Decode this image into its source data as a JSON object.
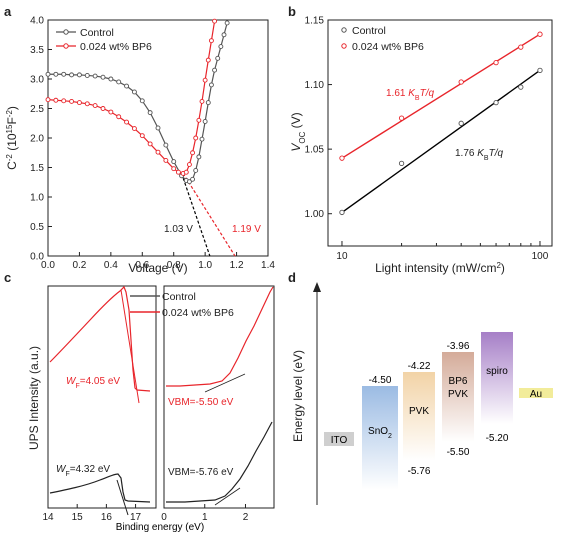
{
  "panels": {
    "a": "a",
    "b": "b",
    "c": "c",
    "d": "d"
  },
  "colors": {
    "control": "#555555",
    "bp6": "#e8252b",
    "control_fit": "#000000",
    "bp6_fit": "#e8252b"
  },
  "legend": {
    "control": "Control",
    "bp6": "0.024 wt% BP6"
  },
  "chart_data": [
    {
      "id": "a",
      "type": "line",
      "xlabel": "Voltage (V)",
      "ylabel_main": "C",
      "ylabel_sup": "-2",
      "ylabel_rest": " (10",
      "ylabel_sup2": "15",
      "ylabel_unit": "F",
      "ylabel_sup3": "-2",
      "ylabel_close": ")",
      "xlim": [
        0.0,
        1.4
      ],
      "ylim": [
        0.0,
        4.0
      ],
      "xticks": [
        "0.0",
        "0.2",
        "0.4",
        "0.6",
        "0.8",
        "1.0",
        "1.2",
        "1.4"
      ],
      "yticks": [
        "0.0",
        "0.5",
        "1.0",
        "1.5",
        "2.0",
        "2.5",
        "3.0",
        "3.5",
        "4.0"
      ],
      "series": [
        {
          "name": "Control",
          "x": [
            0.0,
            0.05,
            0.1,
            0.15,
            0.2,
            0.25,
            0.3,
            0.35,
            0.4,
            0.45,
            0.5,
            0.55,
            0.6,
            0.65,
            0.7,
            0.75,
            0.8,
            0.85,
            0.88,
            0.9,
            0.92,
            0.94,
            0.96,
            0.98,
            1.0,
            1.02,
            1.04,
            1.06,
            1.08,
            1.1,
            1.12,
            1.14
          ],
          "y": [
            3.08,
            3.08,
            3.08,
            3.07,
            3.07,
            3.06,
            3.05,
            3.03,
            3.0,
            2.95,
            2.88,
            2.78,
            2.63,
            2.43,
            2.17,
            1.88,
            1.6,
            1.36,
            1.28,
            1.26,
            1.3,
            1.45,
            1.68,
            1.98,
            2.28,
            2.6,
            2.9,
            3.15,
            3.35,
            3.55,
            3.75,
            3.95
          ]
        },
        {
          "name": "0.024 wt% BP6",
          "x": [
            0.0,
            0.05,
            0.1,
            0.15,
            0.2,
            0.25,
            0.3,
            0.35,
            0.4,
            0.45,
            0.5,
            0.55,
            0.6,
            0.65,
            0.7,
            0.75,
            0.8,
            0.83,
            0.86,
            0.88,
            0.9,
            0.92,
            0.94,
            0.96,
            0.98,
            1.0,
            1.02,
            1.04,
            1.06
          ],
          "y": [
            2.65,
            2.64,
            2.63,
            2.62,
            2.6,
            2.58,
            2.55,
            2.5,
            2.44,
            2.36,
            2.27,
            2.16,
            2.04,
            1.9,
            1.76,
            1.62,
            1.48,
            1.42,
            1.4,
            1.42,
            1.55,
            1.75,
            2.0,
            2.3,
            2.62,
            2.98,
            3.32,
            3.65,
            3.98
          ]
        }
      ],
      "fits": [
        {
          "name": "Control fit",
          "x": [
            0.85,
            1.03
          ],
          "y": [
            1.4,
            0.0
          ]
        },
        {
          "name": "BP6 fit",
          "x": [
            0.86,
            1.19
          ],
          "y": [
            1.4,
            0.0
          ]
        }
      ],
      "annotations": {
        "control_vbi": "1.03 V",
        "bp6_vbi": "1.19 V"
      }
    },
    {
      "id": "b",
      "type": "scatter",
      "xlabel": "Light intensity (mW/cm",
      "xlabel_sup": "2",
      "xlabel_close": ")",
      "ylabel_main": "V",
      "ylabel_sub": "OC",
      "ylabel_unit": " (V)",
      "xscale": "log",
      "xlim": [
        8.5,
        115
      ],
      "ylim": [
        0.975,
        1.15
      ],
      "xticks": [
        "10",
        "100"
      ],
      "xtick_values": [
        10,
        100
      ],
      "yticks": [
        "1.00",
        "1.05",
        "1.10",
        "1.15"
      ],
      "ytick_values": [
        1.0,
        1.05,
        1.1,
        1.15
      ],
      "series": [
        {
          "name": "Control",
          "x": [
            10,
            20,
            40,
            60,
            80,
            100
          ],
          "y": [
            1.001,
            1.039,
            1.07,
            1.086,
            1.098,
            1.111
          ]
        },
        {
          "name": "0.024 wt% BP6",
          "x": [
            10,
            20,
            40,
            60,
            80,
            100
          ],
          "y": [
            1.043,
            1.074,
            1.102,
            1.117,
            1.129,
            1.139
          ]
        }
      ],
      "fits": [
        {
          "name": "Control fit",
          "x": [
            10,
            100
          ],
          "y": [
            1.001,
            1.111
          ]
        },
        {
          "name": "BP6 fit",
          "x": [
            10,
            100
          ],
          "y": [
            1.043,
            1.139
          ]
        }
      ],
      "annotations": {
        "bp6_slope_num": "1.61",
        "control_slope_num": "1.76",
        "k": "K",
        "b_sub": "B",
        "tq": "T/q"
      }
    },
    {
      "id": "c",
      "type": "line",
      "xlabel": "Binding energy (eV)",
      "ylabel": "UPS Intensity (a.u.)",
      "left_xlim": [
        14,
        17.7
      ],
      "left_xticks": [
        "14",
        "15",
        "16",
        "17"
      ],
      "right_xlim": [
        0,
        2.7
      ],
      "right_xticks": [
        "0",
        "1",
        "2"
      ],
      "annotations": {
        "bp6_wf": "=4.05 eV",
        "control_wf": "=4.32 eV",
        "w": "W",
        "w_sub": "F",
        "bp6_vbm": "VBM=-5.50 eV",
        "control_vbm": "VBM=-5.76 eV"
      }
    }
  ],
  "energy_diagram": {
    "ylabel": "Energy level (eV)",
    "layers": [
      {
        "name": "ITO",
        "top": "",
        "bottom": "",
        "color": "#cfcfcf"
      },
      {
        "name": "SnO",
        "name_sub": "2",
        "top": "-4.50",
        "bottom": "",
        "color": "#aac4e6"
      },
      {
        "name": "PVK",
        "top": "-4.22",
        "bottom": "-5.76",
        "color": "#f0d6b0"
      },
      {
        "name": "BP6",
        "name2": "PVK",
        "top": "-3.96",
        "bottom": "-5.50",
        "color": "#d8b7a8"
      },
      {
        "name": "spiro",
        "top": "",
        "bottom": "-5.20",
        "color": "#b597cc"
      },
      {
        "name": "Au",
        "top": "",
        "bottom": "",
        "color": "#f2ec9a"
      }
    ]
  }
}
